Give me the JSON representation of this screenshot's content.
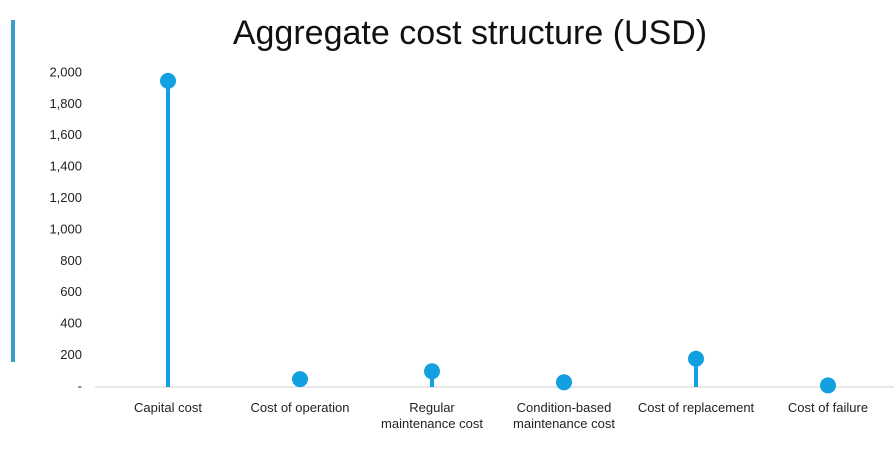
{
  "chart_data": {
    "type": "lollipop",
    "title": "Aggregate cost structure (USD)",
    "categories": [
      "Capital cost",
      "Cost of operation",
      "Regular maintenance cost",
      "Condition-based maintenance cost",
      "Cost of replacement",
      "Cost of failure"
    ],
    "values": [
      1950,
      50,
      100,
      30,
      180,
      10
    ],
    "color": "#12a0e0",
    "ylim": [
      0,
      2000
    ],
    "yticks": [
      {
        "value": 0,
        "label": "-"
      },
      200,
      400,
      600,
      800,
      {
        "value": 1000,
        "label": "1,000"
      },
      {
        "value": 1200,
        "label": "1,200"
      },
      {
        "value": 1400,
        "label": "1,400"
      },
      {
        "value": 1600,
        "label": "1,600"
      },
      {
        "value": 1800,
        "label": "1,800"
      },
      {
        "value": 2000,
        "label": "2,000"
      }
    ],
    "grid": false
  }
}
